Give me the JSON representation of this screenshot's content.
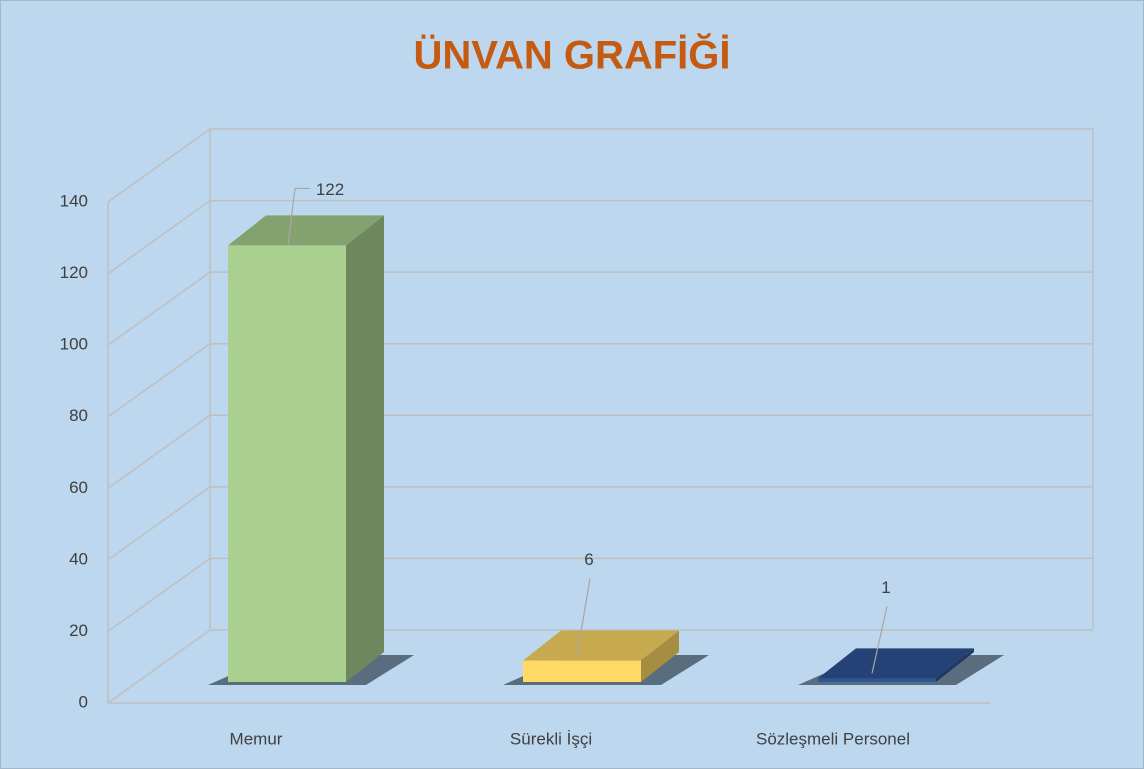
{
  "chart_data": {
    "type": "bar3d",
    "title": "ÜNVAN GRAFİĞİ",
    "categories": [
      "Memur",
      "Sürekli İşçi",
      "Sözleşmeli Personel"
    ],
    "values": [
      122,
      6,
      1
    ],
    "colors": [
      "#a9d08e",
      "#ffd966",
      "#2f5597"
    ],
    "ylim": [
      0,
      140
    ],
    "yticks": [
      0,
      20,
      40,
      60,
      80,
      100,
      120,
      140
    ],
    "grid": true
  }
}
